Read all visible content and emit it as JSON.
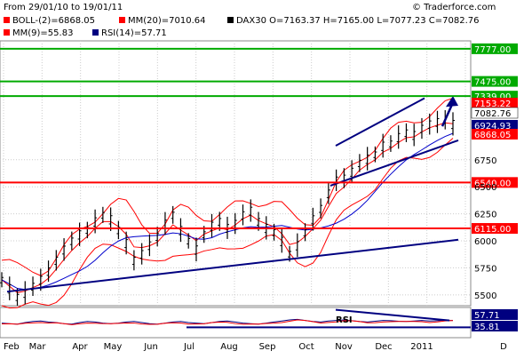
{
  "header": {
    "date_range": "From 29/01/10 to 19/01/11",
    "copyright": "© Traderforce.com",
    "indicators": [
      {
        "text": "BOLL-(2)=6868.05",
        "color": "#ff0000"
      },
      {
        "text": "MM(20)=7010.64",
        "color": "#ff0000"
      },
      {
        "text": "DAX30 O=7163.37 H=7165.00 L=7077.23 C=7082.76",
        "color": "#000000"
      },
      {
        "text": "MM(9)=55.83",
        "color": "#ff0000"
      },
      {
        "text": "RSI(14)=57.71",
        "color": "#000080"
      }
    ]
  },
  "chart_data": [
    {
      "type": "line",
      "name": "DAX30 price",
      "ylim": [
        5400,
        7850
      ],
      "yticks": [
        5500,
        5750,
        6000,
        6250,
        6500,
        6750
      ],
      "xticks": [
        "Feb",
        "Mar",
        "Apr",
        "May",
        "Jun",
        "Jul",
        "Aug",
        "Sep",
        "Oct",
        "Nov",
        "Dec",
        "2011",
        "D"
      ],
      "horizontal_levels": [
        {
          "value": 7777,
          "label": "7777.00",
          "color": "#00aa00"
        },
        {
          "value": 7475,
          "label": "7475.00",
          "color": "#00aa00"
        },
        {
          "value": 7339,
          "label": "7339.00",
          "color": "#00aa00"
        },
        {
          "value": 6540,
          "label": "6540.00",
          "color": "#ff0000"
        },
        {
          "value": 6115,
          "label": "6115.00",
          "color": "#ff0000"
        }
      ],
      "right_labels": [
        {
          "value": 7153.22,
          "label": "7153.22",
          "color": "#ff0000"
        },
        {
          "value": 7082.76,
          "label": "7082.76",
          "color": "#000000"
        },
        {
          "value": 6924.93,
          "label": "6924.93",
          "color": "#000080"
        },
        {
          "value": 6868.05,
          "label": "6868.05",
          "color": "#ff0000"
        }
      ],
      "series": [
        {
          "values": [
            5640,
            5560,
            5480,
            5520,
            5580,
            5640,
            5720,
            5820,
            5920,
            6000,
            6060,
            6100,
            6180,
            6240,
            6200,
            6100,
            5980,
            5820,
            5880,
            5960,
            6040,
            6160,
            6240,
            6100,
            6000,
            5920,
            6060,
            6140,
            6180,
            6120,
            6160,
            6240,
            6280,
            6180,
            6120,
            6080,
            6000,
            5880,
            5960,
            6080,
            6200,
            6300,
            6440,
            6560,
            6580,
            6640,
            6720,
            6760,
            6800,
            6880,
            6900,
            6960,
            7000,
            6980,
            7040,
            7080,
            7100,
            7120,
            7082
          ]
        }
      ]
    },
    {
      "type": "line",
      "name": "RSI",
      "ylim": [
        0,
        100
      ],
      "right_labels": [
        {
          "value": 57.71,
          "label": "57.71",
          "color": "#000080"
        },
        {
          "value": 35.81,
          "label": "35.81",
          "color": "#000080"
        }
      ],
      "annotation": "RSI",
      "series": [
        {
          "values": [
            48,
            46,
            44,
            50,
            54,
            56,
            52,
            50,
            46,
            44,
            50,
            54,
            52,
            48,
            46,
            48,
            52,
            54,
            50,
            46,
            44,
            48,
            52,
            54,
            50,
            48,
            46,
            50,
            54,
            56,
            52,
            48,
            46,
            44,
            48,
            52,
            56,
            60,
            62,
            58,
            54,
            52,
            56,
            58,
            60,
            57,
            54,
            52,
            55,
            58,
            57,
            55,
            54,
            56,
            58,
            56,
            57,
            58,
            57.71
          ]
        }
      ]
    }
  ]
}
